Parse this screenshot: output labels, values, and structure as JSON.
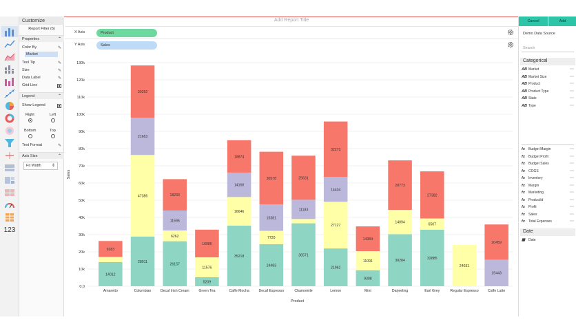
{
  "app": {
    "title_placeholder": "Add Report Title"
  },
  "left_rail": {
    "icons": [
      "bar-chart-icon",
      "line-chart-icon",
      "area-chart-icon",
      "stacked-bar-icon",
      "column-chart-icon",
      "scatter-icon",
      "pie-chart-icon",
      "donut-chart-icon",
      "radar-chart-icon",
      "funnel-icon",
      "pointer-icon",
      "heatmap-icon",
      "treemap-icon",
      "gauge-icon",
      "grid-icon",
      "table-icon"
    ],
    "number_label": "123"
  },
  "customize": {
    "title": "Customize",
    "report_filter": "Report Filter (6)",
    "properties": {
      "title": "Properties",
      "color_by_label": "Color By",
      "color_by_value": "Market",
      "tooltip_label": "Tool Tip",
      "size_label": "Size",
      "data_label_label": "Data Label",
      "grid_line_label": "Grid Line"
    },
    "legend": {
      "title": "Legend",
      "show_legend_label": "Show Legend",
      "right_label": "Right",
      "left_label": "Left",
      "bottom_label": "Bottom",
      "top_label": "Top",
      "text_format_label": "Text Format"
    },
    "axis_size": {
      "title": "Axis Size",
      "value": "Fit Width"
    }
  },
  "axes": {
    "x_label": "X Axis",
    "x_field": "Product",
    "y_label": "Y Axis",
    "y_field": "Sales"
  },
  "right_panel": {
    "cancel_label": "Cancel",
    "add_label": "Add",
    "data_source": "Demo Data Source",
    "search_placeholder": "Search",
    "categorical_title": "Categorical",
    "categorical_fields": [
      "Market",
      "Market Size",
      "Product",
      "Product Type",
      "State",
      "Type"
    ],
    "categorical_tag": "AB",
    "measure_fields": [
      "Budget Margin",
      "Budget Profit",
      "Budget Sales",
      "COGS",
      "Inventory",
      "Margin",
      "Marketing",
      "ProductId",
      "Profit",
      "Sales",
      "Total Expenses"
    ],
    "measure_tag": "fx",
    "date_title": "Date",
    "date_fields": [
      "Date"
    ]
  },
  "colors": {
    "accent": "#2ec4a7",
    "series": [
      "#8fd5c3",
      "#ffffa8",
      "#bbb8dc",
      "#f7786b"
    ]
  },
  "chart_data": {
    "type": "bar",
    "stacked": true,
    "xlabel": "Product",
    "ylabel": "Sales",
    "ylim": [
      0,
      130000
    ],
    "y_ticks": [
      "0.0",
      "10k",
      "20k",
      "30k",
      "40k",
      "50k",
      "60k",
      "70k",
      "80k",
      "90k",
      "100k",
      "110k",
      "120k",
      "130k"
    ],
    "grid": true,
    "legend": "none",
    "categories": [
      "Amaretto",
      "Columbian",
      "Decaf Irish Cream",
      "Green Tea",
      "Caffe Mocha",
      "Decaf Espresso",
      "Chamomile",
      "Lemon",
      "Mint",
      "Darjeeling",
      "Earl Grey",
      "Regular Espresso",
      "Caffe Latte"
    ],
    "series": [
      {
        "values": [
          14012,
          28911,
          26157,
          5209,
          35218,
          24483,
          36571,
          21962,
          9308,
          30284,
          32885,
          0,
          0
        ]
      },
      {
        "values": [
          3000,
          47386,
          6262,
          11576,
          16646,
          7720,
          2500,
          27127,
          11091,
          14094,
          6507,
          24031,
          0
        ]
      },
      {
        "values": [
          0,
          21663,
          11596,
          0,
          14166,
          15381,
          11183,
          14404,
          0,
          0,
          0,
          0,
          15443
        ]
      },
      {
        "values": [
          9283,
          30392,
          18233,
          16086,
          18874,
          30578,
          25631,
          32273,
          14384,
          28773,
          27382,
          0,
          20459
        ]
      }
    ],
    "data_labels": [
      [
        "14012",
        "28911",
        "26157",
        "5209",
        "35218",
        "24483",
        "36571",
        "21962",
        "9308",
        "30284",
        "32885",
        "",
        ""
      ],
      [
        "",
        "47386",
        "6262",
        "11576",
        "16646",
        "7720",
        "",
        "27127",
        "11091",
        "14094",
        "6507",
        "24031",
        ""
      ],
      [
        "",
        "21663",
        "11596",
        "",
        "14166",
        "15381",
        "11183",
        "14404",
        "",
        "",
        "",
        "",
        "15443"
      ],
      [
        "9283",
        "30392",
        "18233",
        "16086",
        "18874",
        "30578",
        "25631",
        "32273",
        "14384",
        "28773",
        "27382",
        "",
        "20459"
      ]
    ]
  }
}
